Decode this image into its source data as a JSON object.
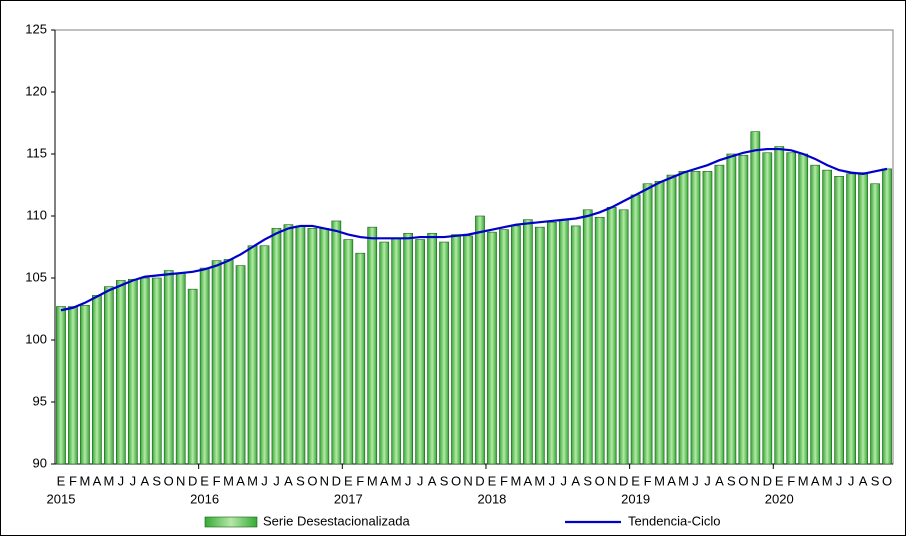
{
  "chart_data": {
    "type": "bar-line",
    "categories": [
      "E",
      "F",
      "M",
      "A",
      "M",
      "J",
      "J",
      "A",
      "S",
      "O",
      "N",
      "D",
      "E",
      "F",
      "M",
      "A",
      "M",
      "J",
      "J",
      "A",
      "S",
      "O",
      "N",
      "D",
      "E",
      "F",
      "M",
      "A",
      "M",
      "J",
      "J",
      "A",
      "S",
      "O",
      "N",
      "D",
      "E",
      "F",
      "M",
      "A",
      "M",
      "J",
      "J",
      "A",
      "S",
      "O",
      "N",
      "D",
      "E",
      "F",
      "M",
      "A",
      "M",
      "J",
      "J",
      "A",
      "S",
      "O",
      "N",
      "D",
      "E",
      "F",
      "M",
      "A",
      "M",
      "J",
      "J",
      "A",
      "S",
      "O"
    ],
    "year_labels": [
      "2015",
      "2016",
      "2017",
      "2018",
      "2019",
      "2020"
    ],
    "series": [
      {
        "name": "Serie Desestacionalizada",
        "type": "bar",
        "color": "#33aa33",
        "values": [
          102.7,
          102.7,
          102.8,
          103.6,
          104.3,
          104.8,
          104.9,
          105.0,
          105.0,
          105.6,
          105.4,
          104.1,
          105.8,
          106.4,
          106.5,
          106.0,
          107.6,
          107.6,
          109.0,
          109.3,
          109.2,
          109.0,
          109.0,
          109.6,
          108.1,
          107.0,
          109.1,
          107.9,
          108.2,
          108.6,
          108.1,
          108.6,
          107.9,
          108.5,
          108.4,
          110.0,
          108.7,
          108.9,
          109.2,
          109.7,
          109.1,
          109.5,
          109.7,
          109.2,
          110.5,
          109.9,
          110.7,
          110.5,
          111.7,
          112.6,
          112.8,
          113.3,
          113.6,
          113.6,
          113.6,
          114.1,
          115.0,
          114.9,
          116.8,
          115.1,
          115.6,
          115.1,
          115.0,
          114.1,
          113.7,
          113.2,
          113.4,
          113.5,
          112.6,
          113.8
        ]
      },
      {
        "name": "Tendencia-Ciclo",
        "type": "line",
        "color": "#0000cc",
        "values": [
          102.4,
          102.6,
          103.0,
          103.5,
          104.0,
          104.4,
          104.8,
          105.1,
          105.2,
          105.3,
          105.4,
          105.5,
          105.7,
          106.0,
          106.4,
          106.9,
          107.5,
          108.1,
          108.6,
          109.0,
          109.2,
          109.2,
          109.0,
          108.8,
          108.5,
          108.3,
          108.2,
          108.2,
          108.2,
          108.2,
          108.3,
          108.3,
          108.3,
          108.4,
          108.5,
          108.7,
          108.9,
          109.1,
          109.3,
          109.4,
          109.5,
          109.6,
          109.7,
          109.8,
          110.0,
          110.3,
          110.7,
          111.2,
          111.7,
          112.2,
          112.7,
          113.1,
          113.5,
          113.8,
          114.1,
          114.5,
          114.8,
          115.1,
          115.3,
          115.4,
          115.4,
          115.3,
          115.0,
          114.6,
          114.1,
          113.7,
          113.5,
          113.4,
          113.6,
          113.8
        ]
      }
    ],
    "ylim": [
      90,
      125
    ],
    "yticks": [
      90,
      95,
      100,
      105,
      110,
      115,
      120,
      125
    ],
    "grid": false
  }
}
